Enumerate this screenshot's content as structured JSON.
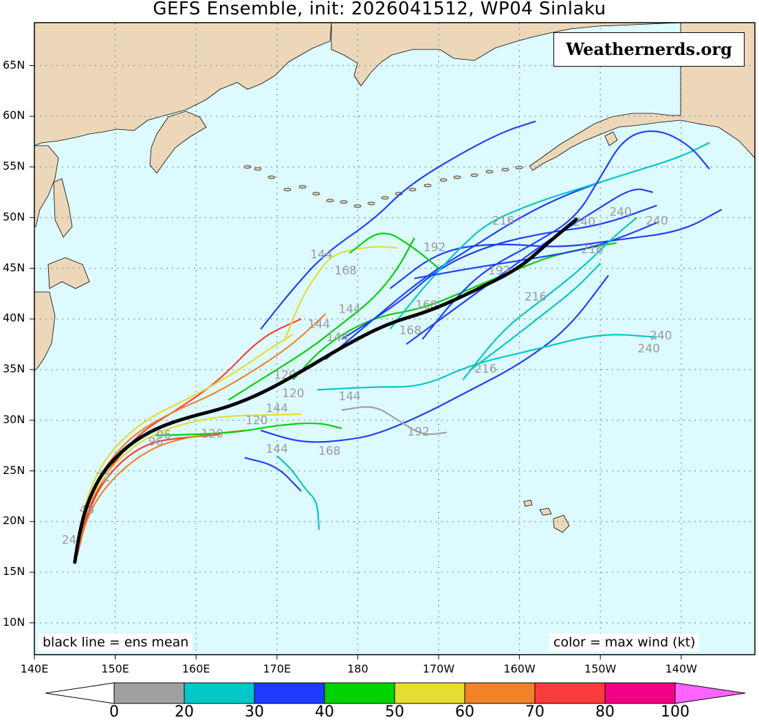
{
  "title": "GEFS Ensemble, init: 2026041512, WP04 Sinlaku",
  "watermark": "Weathernerds.org",
  "notes": {
    "left": "black line = ens mean",
    "right": "color = max wind (kt)"
  },
  "lat_labels": [
    "65N",
    "60N",
    "55N",
    "50N",
    "45N",
    "40N",
    "35N",
    "30N",
    "25N",
    "20N",
    "15N",
    "10N"
  ],
  "lon_labels": [
    "140E",
    "150E",
    "160E",
    "170E",
    "180",
    "170W",
    "160W",
    "150W",
    "140W"
  ],
  "colors": {
    "ocean": "#dcfaff",
    "land": "#ecd8b9",
    "grid": "#7a8fa0",
    "mean_track": "#000000",
    "hour_label": "#9a9a9a"
  },
  "legend": {
    "ticks": [
      "0",
      "20",
      "30",
      "40",
      "50",
      "60",
      "70",
      "80",
      "100"
    ],
    "bins": [
      {
        "min": 0,
        "max": 20,
        "color": "#a0a0a0"
      },
      {
        "min": 20,
        "max": 30,
        "color": "#00c8c8"
      },
      {
        "min": 30,
        "max": 40,
        "color": "#1e3cff"
      },
      {
        "min": 40,
        "max": 50,
        "color": "#00d200"
      },
      {
        "min": 50,
        "max": 60,
        "color": "#e6dc32"
      },
      {
        "min": 60,
        "max": 70,
        "color": "#f08228"
      },
      {
        "min": 70,
        "max": 80,
        "color": "#fa3c3c"
      },
      {
        "min": 80,
        "max": 100,
        "color": "#f00082"
      }
    ],
    "low_color": "#ffffff",
    "high_color": "#ff64ff"
  },
  "mean_track": [
    {
      "lon": 145,
      "lat": 16
    },
    {
      "lon": 145.6,
      "lat": 19
    },
    {
      "lon": 146.6,
      "lat": 22
    },
    {
      "lon": 148.5,
      "lat": 25
    },
    {
      "lon": 151.5,
      "lat": 27.5
    },
    {
      "lon": 155,
      "lat": 29.2
    },
    {
      "lon": 159,
      "lat": 30.3
    },
    {
      "lon": 164,
      "lat": 31.3
    },
    {
      "lon": 168.5,
      "lat": 32.8
    },
    {
      "lon": 173,
      "lat": 34.8
    },
    {
      "lon": 178,
      "lat": 37.2
    },
    {
      "lon": -176.5,
      "lat": 39.5
    },
    {
      "lon": -171,
      "lat": 40.8
    },
    {
      "lon": -165.5,
      "lat": 42.8
    },
    {
      "lon": -160,
      "lat": 45
    },
    {
      "lon": -156.5,
      "lat": 47.5
    },
    {
      "lon": -153,
      "lat": 49.8
    }
  ],
  "member_tracks": [
    {
      "color": "#fa3c3c",
      "pts": [
        [
          145.2,
          16.5
        ],
        [
          146.5,
          21
        ],
        [
          149,
          25
        ],
        [
          153,
          28.8
        ],
        [
          158,
          31.2
        ],
        [
          163,
          34
        ],
        [
          168,
          38.2
        ],
        [
          173,
          40
        ]
      ]
    },
    {
      "color": "#f08228",
      "pts": [
        [
          145.1,
          16.4
        ],
        [
          146,
          21
        ],
        [
          148.3,
          25
        ],
        [
          152,
          28.5
        ],
        [
          157,
          30.8
        ],
        [
          162,
          32.5
        ],
        [
          167,
          34.8
        ],
        [
          172,
          37.5
        ],
        [
          176,
          40.5
        ]
      ]
    },
    {
      "color": "#e6dc32",
      "pts": [
        [
          145.2,
          16.6
        ],
        [
          146.4,
          21.5
        ],
        [
          149.5,
          25.5
        ],
        [
          153.5,
          28.2
        ],
        [
          158,
          29.6
        ],
        [
          163,
          30.4
        ],
        [
          168,
          30.5
        ],
        [
          173,
          30.6
        ]
      ]
    },
    {
      "color": "#fa3c3c",
      "pts": [
        [
          145.3,
          16.7
        ],
        [
          147,
          22
        ],
        [
          150,
          25.5
        ],
        [
          154,
          27.8
        ],
        [
          158.5,
          28.3
        ],
        [
          163,
          28.6
        ]
      ]
    },
    {
      "color": "#f08228",
      "pts": [
        [
          145.2,
          16.8
        ],
        [
          147,
          21.5
        ],
        [
          150.5,
          25
        ],
        [
          155,
          27.5
        ],
        [
          160,
          28.5
        ],
        [
          166,
          29
        ]
      ]
    },
    {
      "color": "#e6dc32",
      "pts": [
        [
          145,
          16.5
        ],
        [
          145.8,
          20.5
        ],
        [
          147.5,
          24.5
        ],
        [
          150,
          27.5
        ],
        [
          154,
          30.2
        ],
        [
          160,
          32.5
        ],
        [
          165,
          34.8
        ],
        [
          169,
          37
        ],
        [
          172,
          38.5
        ]
      ]
    },
    {
      "color": "#00d200",
      "pts": [
        [
          155,
          28.5
        ],
        [
          160,
          28.6
        ],
        [
          165,
          28.8
        ],
        [
          170,
          29.5
        ],
        [
          175,
          29.8
        ],
        [
          178,
          29.2
        ]
      ]
    },
    {
      "color": "#00d200",
      "pts": [
        [
          164,
          32
        ],
        [
          169,
          34.5
        ],
        [
          174,
          37
        ],
        [
          178,
          39.5
        ],
        [
          -178,
          42
        ],
        [
          -175,
          45
        ],
        [
          -173,
          48
        ]
      ]
    },
    {
      "color": "#00d200",
      "pts": [
        [
          172,
          34
        ],
        [
          176,
          37.5
        ],
        [
          -178,
          40.2
        ],
        [
          -172,
          41
        ],
        [
          -166,
          43
        ],
        [
          -160,
          45
        ],
        [
          -155,
          46.5
        ],
        [
          -148,
          47.5
        ]
      ]
    },
    {
      "color": "#1e3cff",
      "pts": [
        [
          168,
          29
        ],
        [
          172,
          28
        ],
        [
          175,
          27.8
        ],
        [
          178,
          28
        ],
        [
          -178,
          28.5
        ],
        [
          -172,
          30.5
        ],
        [
          -166,
          33
        ],
        [
          -160,
          35.5
        ],
        [
          -154,
          39
        ],
        [
          -149,
          44.3
        ]
      ]
    },
    {
      "color": "#1e3cff",
      "pts": [
        [
          176,
          36
        ],
        [
          -178,
          40
        ],
        [
          -172,
          44
        ],
        [
          -166,
          47
        ],
        [
          -160,
          50
        ],
        [
          -155,
          52
        ],
        [
          -150,
          53.5
        ]
      ]
    },
    {
      "color": "#1e3cff",
      "pts": [
        [
          178,
          38
        ],
        [
          -175,
          41.5
        ],
        [
          -170,
          45
        ],
        [
          -164,
          47.2
        ],
        [
          -157,
          48.5
        ],
        [
          -150,
          49.2
        ],
        [
          -143,
          51.2
        ]
      ]
    },
    {
      "color": "#1e3cff",
      "pts": [
        [
          -176,
          43
        ],
        [
          -170,
          46.7
        ],
        [
          -163,
          47.5
        ],
        [
          -155,
          47
        ],
        [
          -148,
          47.8
        ],
        [
          -140,
          48.6
        ],
        [
          -135,
          50.8
        ]
      ]
    },
    {
      "color": "#00c8c8",
      "pts": [
        [
          -176,
          39
        ],
        [
          -172,
          43
        ],
        [
          -168,
          46.5
        ],
        [
          -164,
          49.5
        ],
        [
          -158,
          51.5
        ],
        [
          -152,
          53
        ],
        [
          -146,
          54.5
        ],
        [
          -140,
          56
        ],
        [
          -136.5,
          57.4
        ]
      ]
    },
    {
      "color": "#00c8c8",
      "pts": [
        [
          175,
          33
        ],
        [
          -178,
          33.3
        ],
        [
          -172,
          33.3
        ],
        [
          -166,
          35.5
        ],
        [
          -158,
          37
        ],
        [
          -150,
          38.6
        ],
        [
          -143,
          38.2
        ]
      ]
    },
    {
      "color": "#1e3cff",
      "pts": [
        [
          168,
          39
        ],
        [
          172,
          43
        ],
        [
          176,
          46.5
        ],
        [
          -178,
          49.8
        ],
        [
          -174,
          53
        ],
        [
          -168,
          56
        ],
        [
          -162,
          58.5
        ],
        [
          -158,
          59.5
        ]
      ]
    },
    {
      "color": "#1e3cff",
      "pts": [
        [
          -172,
          38
        ],
        [
          -168,
          42
        ],
        [
          -164,
          45
        ],
        [
          -158,
          47.5
        ],
        [
          -153,
          50
        ],
        [
          -150,
          54
        ],
        [
          -147,
          58
        ],
        [
          -143,
          58.8
        ],
        [
          -139,
          57.2
        ],
        [
          -136.5,
          54.8
        ]
      ]
    },
    {
      "color": "#a0a0a0",
      "pts": [
        [
          178,
          31
        ],
        [
          -178,
          31.5
        ],
        [
          -175,
          30
        ],
        [
          -172,
          28.5
        ],
        [
          -169,
          28.8
        ]
      ]
    },
    {
      "color": "#00c8c8",
      "pts": [
        [
          170,
          26.5
        ],
        [
          172,
          25
        ],
        [
          173.5,
          23.2
        ],
        [
          175,
          22
        ],
        [
          175.2,
          19.2
        ]
      ]
    },
    {
      "color": "#1e3cff",
      "pts": [
        [
          166,
          26.3
        ],
        [
          170,
          25.5
        ],
        [
          173,
          23
        ]
      ]
    },
    {
      "color": "#e6dc32",
      "pts": [
        [
          171,
          38
        ],
        [
          173,
          42
        ],
        [
          175,
          44.5
        ],
        [
          177,
          46.5
        ],
        [
          -178,
          47.2
        ],
        [
          -175,
          47
        ]
      ]
    },
    {
      "color": "#1e3cff",
      "pts": [
        [
          -173,
          44
        ],
        [
          -166,
          45
        ],
        [
          -158,
          46
        ],
        [
          -151,
          47
        ],
        [
          -146,
          48.5
        ],
        [
          -143,
          49.5
        ]
      ]
    },
    {
      "color": "#1e3cff",
      "pts": [
        [
          -174,
          37.5
        ],
        [
          -168,
          41
        ],
        [
          -162,
          44.5
        ],
        [
          -156,
          48
        ],
        [
          -151,
          50.5
        ],
        [
          -146,
          53
        ],
        [
          -143.5,
          52.5
        ]
      ]
    },
    {
      "color": "#00c8c8",
      "pts": [
        [
          -167,
          34
        ],
        [
          -162,
          39
        ],
        [
          -157,
          42
        ],
        [
          -152,
          45.2
        ],
        [
          -148.5,
          48
        ],
        [
          -145.5,
          50
        ]
      ]
    },
    {
      "color": "#00d200",
      "pts": [
        [
          179,
          46.5
        ],
        [
          -177,
          49
        ],
        [
          -173,
          47
        ],
        [
          -170,
          45
        ]
      ]
    },
    {
      "color": "#00c8c8",
      "pts": [
        [
          -166,
          35
        ],
        [
          -161,
          38
        ],
        [
          -157,
          40.5
        ],
        [
          -153,
          43
        ],
        [
          -150,
          45.5
        ]
      ]
    }
  ],
  "hour_labels": [
    {
      "text": "144",
      "lon": 175.5,
      "lat": 46
    },
    {
      "text": "168",
      "lon": 178.5,
      "lat": 44.4
    },
    {
      "text": "192",
      "lon": -170.5,
      "lat": 46.7
    },
    {
      "text": "216",
      "lon": -162,
      "lat": 49.3
    },
    {
      "text": "240",
      "lon": -152,
      "lat": 49.2
    },
    {
      "text": "240",
      "lon": -147.5,
      "lat": 50.2
    },
    {
      "text": "240",
      "lon": -143,
      "lat": 49.3
    },
    {
      "text": "192",
      "lon": -162.5,
      "lat": 44.4
    },
    {
      "text": "216",
      "lon": -158,
      "lat": 41.8
    },
    {
      "text": "216",
      "lon": -151,
      "lat": 46.5
    },
    {
      "text": "144",
      "lon": 179,
      "lat": 40.6
    },
    {
      "text": "168",
      "lon": -171.5,
      "lat": 41
    },
    {
      "text": "168",
      "lon": -173.5,
      "lat": 38.5
    },
    {
      "text": "240",
      "lon": -142.5,
      "lat": 38
    },
    {
      "text": "240",
      "lon": -144,
      "lat": 36.7
    },
    {
      "text": "216",
      "lon": -164.2,
      "lat": 34.7
    },
    {
      "text": "144",
      "lon": 175.2,
      "lat": 39.1
    },
    {
      "text": "144",
      "lon": 177.5,
      "lat": 37.8
    },
    {
      "text": "120",
      "lon": 171,
      "lat": 34.1
    },
    {
      "text": "120",
      "lon": 172,
      "lat": 32.3
    },
    {
      "text": "144",
      "lon": 170,
      "lat": 30.8
    },
    {
      "text": "144",
      "lon": 179,
      "lat": 32
    },
    {
      "text": "120",
      "lon": 167.5,
      "lat": 29.6
    },
    {
      "text": "120",
      "lon": 162,
      "lat": 28.3
    },
    {
      "text": "96",
      "lon": 156,
      "lat": 28.2
    },
    {
      "text": "96",
      "lon": 155,
      "lat": 27.5
    },
    {
      "text": "144",
      "lon": 170,
      "lat": 26.8
    },
    {
      "text": "168",
      "lon": 176.5,
      "lat": 26.6
    },
    {
      "text": "192",
      "lon": -172.5,
      "lat": 28.5
    },
    {
      "text": "72",
      "lon": 148.5,
      "lat": 24
    },
    {
      "text": "48",
      "lon": 146.5,
      "lat": 20.8
    },
    {
      "text": "24",
      "lon": 144.3,
      "lat": 17.8
    }
  ]
}
